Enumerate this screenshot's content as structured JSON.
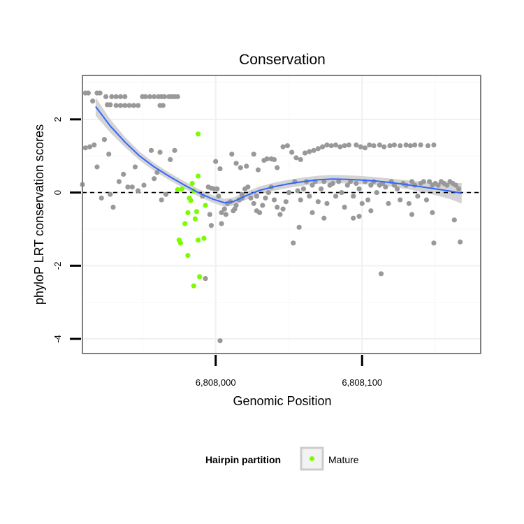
{
  "chart_data": {
    "type": "scatter",
    "title": "Conservation",
    "xlabel": "Genomic Position",
    "ylabel": "phyloP LRT conservation scores",
    "xlim": [
      6807909,
      6808181
    ],
    "ylim": [
      -4.4,
      3.2
    ],
    "x_ticks": [
      {
        "value": 6808000,
        "label": "6,808,000"
      },
      {
        "value": 6808100,
        "label": "6,808,100"
      }
    ],
    "y_ticks": [
      {
        "value": -4,
        "label": "-4"
      },
      {
        "value": -2,
        "label": "-2"
      },
      {
        "value": 0,
        "label": "0"
      },
      {
        "value": 2,
        "label": "2"
      }
    ],
    "grid": true,
    "reference_line": {
      "y": 0,
      "style": "dashed"
    },
    "legend": {
      "title": "Hairpin partition",
      "position": "bottom",
      "entries": [
        {
          "label": "Mature",
          "color": "#7CFC00"
        }
      ]
    },
    "colors": {
      "other": "#999999",
      "mature": "#7CFC00",
      "smooth": "#3366FF",
      "band": "#cccccc",
      "frame": "#7f7f7f"
    },
    "series": [
      {
        "name": "Mature",
        "points": [
          [
            6807974,
            0.08
          ],
          [
            6807977,
            0.1
          ],
          [
            6807979,
            -0.85
          ],
          [
            6807981,
            -0.55
          ],
          [
            6807982,
            -0.15
          ],
          [
            6807983,
            -0.22
          ],
          [
            6807985,
            0.05
          ],
          [
            6807986,
            -0.72
          ],
          [
            6807987,
            -0.52
          ],
          [
            6807988,
            0.45
          ],
          [
            6807975,
            -1.3
          ],
          [
            6807976,
            -1.38
          ],
          [
            6807981,
            -1.72
          ],
          [
            6807985,
            -2.55
          ],
          [
            6807989,
            -2.3
          ],
          [
            6807988,
            -1.3
          ],
          [
            6807992,
            -1.25
          ],
          [
            6807988,
            1.6
          ],
          [
            6807993,
            -0.35
          ],
          [
            6807984,
            0.25
          ]
        ]
      },
      {
        "points": [
          [
            6807911,
            2.72
          ],
          [
            6807913,
            2.72
          ],
          [
            6807919,
            2.72
          ],
          [
            6807921,
            2.72
          ],
          [
            6807926,
            2.4
          ],
          [
            6807928,
            2.4
          ],
          [
            6807925,
            2.62
          ],
          [
            6807929,
            2.62
          ],
          [
            6807932,
            2.62
          ],
          [
            6807935,
            2.62
          ],
          [
            6807938,
            2.62
          ],
          [
            6807932,
            2.38
          ],
          [
            6807935,
            2.38
          ],
          [
            6807938,
            2.38
          ],
          [
            6807941,
            2.38
          ],
          [
            6807944,
            2.38
          ],
          [
            6807947,
            2.38
          ],
          [
            6807950,
            2.62
          ],
          [
            6807952,
            2.62
          ],
          [
            6807955,
            2.62
          ],
          [
            6807958,
            2.62
          ],
          [
            6807961,
            2.62
          ],
          [
            6807963,
            2.62
          ],
          [
            6807965,
            2.62
          ],
          [
            6807968,
            2.62
          ],
          [
            6807970,
            2.62
          ],
          [
            6807972,
            2.62
          ],
          [
            6807974,
            2.62
          ],
          [
            6807962,
            2.38
          ],
          [
            6807964,
            2.38
          ],
          [
            6807911,
            1.22
          ],
          [
            6807914,
            1.25
          ],
          [
            6807917,
            1.3
          ],
          [
            6807924,
            1.45
          ],
          [
            6807927,
            1.05
          ],
          [
            6807919,
            0.7
          ],
          [
            6807922,
            -0.15
          ],
          [
            6807928,
            -0.05
          ],
          [
            6807930,
            -0.4
          ],
          [
            6807934,
            0.3
          ],
          [
            6807937,
            0.5
          ],
          [
            6807940,
            0.15
          ],
          [
            6807943,
            0.15
          ],
          [
            6807945,
            0.7
          ],
          [
            6807947,
            0.05
          ],
          [
            6807951,
            0.2
          ],
          [
            6807956,
            1.15
          ],
          [
            6807958,
            0.38
          ],
          [
            6807960,
            0.55
          ],
          [
            6807962,
            1.1
          ],
          [
            6807963,
            -0.2
          ],
          [
            6807966,
            -0.05
          ],
          [
            6807969,
            0.9
          ],
          [
            6807972,
            1.15
          ],
          [
            6807909,
            0.22
          ],
          [
            6807916,
            2.5
          ],
          [
            6807995,
            0.15
          ],
          [
            6807997,
            0.12
          ],
          [
            6807999,
            0.1
          ],
          [
            6808001,
            0.1
          ],
          [
            6808002,
            -0.1
          ],
          [
            6808004,
            -0.55
          ],
          [
            6808006,
            -0.45
          ],
          [
            6808008,
            -0.3
          ],
          [
            6808010,
            -0.25
          ],
          [
            6808012,
            -0.5
          ],
          [
            6808014,
            -0.35
          ],
          [
            6808016,
            -0.2
          ],
          [
            6808018,
            -0.05
          ],
          [
            6808020,
            0.1
          ],
          [
            6808022,
            0.15
          ],
          [
            6808024,
            -0.15
          ],
          [
            6808026,
            -0.3
          ],
          [
            6808028,
            -0.5
          ],
          [
            6808030,
            -0.55
          ],
          [
            6808032,
            -0.35
          ],
          [
            6808034,
            -0.15
          ],
          [
            6808036,
            0.0
          ],
          [
            6808038,
            0.15
          ],
          [
            6808040,
            -0.2
          ],
          [
            6808042,
            -0.4
          ],
          [
            6808044,
            -0.6
          ],
          [
            6808046,
            -0.45
          ],
          [
            6808048,
            -0.25
          ],
          [
            6808050,
            0.0
          ],
          [
            6808004,
            -0.85
          ],
          [
            6808007,
            -0.6
          ],
          [
            6808013,
            -0.45
          ],
          [
            6808028,
            -0.1
          ],
          [
            6808018,
            -0.15
          ],
          [
            6808000,
            0.85
          ],
          [
            6808003,
            0.65
          ],
          [
            6808011,
            1.05
          ],
          [
            6808014,
            0.8
          ],
          [
            6808017,
            0.68
          ],
          [
            6808021,
            0.72
          ],
          [
            6808026,
            1.05
          ],
          [
            6808029,
            0.62
          ],
          [
            6808033,
            0.88
          ],
          [
            6808035,
            0.92
          ],
          [
            6808038,
            0.92
          ],
          [
            6808040,
            0.9
          ],
          [
            6808042,
            0.68
          ],
          [
            6808046,
            1.25
          ],
          [
            6808049,
            1.28
          ],
          [
            6808052,
            1.1
          ],
          [
            6808055,
            0.95
          ],
          [
            6808058,
            0.9
          ],
          [
            6808061,
            1.08
          ],
          [
            6808064,
            1.12
          ],
          [
            6808067,
            1.15
          ],
          [
            6808070,
            1.2
          ],
          [
            6808073,
            1.25
          ],
          [
            6808076,
            1.3
          ],
          [
            6808079,
            1.28
          ],
          [
            6808082,
            1.3
          ],
          [
            6808085,
            1.25
          ],
          [
            6808088,
            1.28
          ],
          [
            6808091,
            1.3
          ],
          [
            6808096,
            1.3
          ],
          [
            6808099,
            1.25
          ],
          [
            6808102,
            1.22
          ],
          [
            6808105,
            1.3
          ],
          [
            6808108,
            1.28
          ],
          [
            6808112,
            1.3
          ],
          [
            6808115,
            1.25
          ],
          [
            6808119,
            1.28
          ],
          [
            6808122,
            1.3
          ],
          [
            6808126,
            1.28
          ],
          [
            6808130,
            1.3
          ],
          [
            6808133,
            1.28
          ],
          [
            6808136,
            1.3
          ],
          [
            6808140,
            1.3
          ],
          [
            6808145,
            1.28
          ],
          [
            6808149,
            1.3
          ],
          [
            6808054,
            0.3
          ],
          [
            6808056,
            0.05
          ],
          [
            6808058,
            -0.2
          ],
          [
            6808060,
            0.1
          ],
          [
            6808062,
            0.3
          ],
          [
            6808064,
            -0.1
          ],
          [
            6808066,
            0.2
          ],
          [
            6808068,
            0.3
          ],
          [
            6808070,
            -0.25
          ],
          [
            6808072,
            0.1
          ],
          [
            6808074,
            0.3
          ],
          [
            6808076,
            -0.3
          ],
          [
            6808078,
            0.2
          ],
          [
            6808080,
            0.25
          ],
          [
            6808082,
            -0.1
          ],
          [
            6808084,
            0.3
          ],
          [
            6808086,
            0.0
          ],
          [
            6808088,
            -0.4
          ],
          [
            6808090,
            0.2
          ],
          [
            6808092,
            0.3
          ],
          [
            6808094,
            -0.1
          ],
          [
            6808096,
            0.25
          ],
          [
            6808098,
            0.1
          ],
          [
            6808100,
            -0.3
          ],
          [
            6808102,
            0.3
          ],
          [
            6808104,
            -0.2
          ],
          [
            6808106,
            0.2
          ],
          [
            6808108,
            0.3
          ],
          [
            6808110,
            0.0
          ],
          [
            6808112,
            0.2
          ],
          [
            6808114,
            0.25
          ],
          [
            6808116,
            0.15
          ],
          [
            6808118,
            -0.3
          ],
          [
            6808120,
            0.3
          ],
          [
            6808122,
            0.2
          ],
          [
            6808124,
            0.1
          ],
          [
            6808126,
            -0.2
          ],
          [
            6808128,
            0.25
          ],
          [
            6808130,
            0.2
          ],
          [
            6808132,
            -0.3
          ],
          [
            6808134,
            0.3
          ],
          [
            6808136,
            0.2
          ],
          [
            6808138,
            -0.1
          ],
          [
            6808140,
            0.25
          ],
          [
            6808142,
            0.3
          ],
          [
            6808144,
            -0.2
          ],
          [
            6808146,
            0.3
          ],
          [
            6808148,
            0.2
          ],
          [
            6808150,
            0.25
          ],
          [
            6808152,
            0.2
          ],
          [
            6808154,
            0.3
          ],
          [
            6808156,
            0.25
          ],
          [
            6808158,
            0.2
          ],
          [
            6808160,
            0.3
          ],
          [
            6808162,
            0.25
          ],
          [
            6808164,
            0.2
          ],
          [
            6808166,
            0.1
          ],
          [
            6808057,
            -0.95
          ],
          [
            6808066,
            -0.55
          ],
          [
            6808074,
            -0.7
          ],
          [
            6808094,
            -0.7
          ],
          [
            6808098,
            -0.65
          ],
          [
            6808106,
            -0.5
          ],
          [
            6808134,
            -0.6
          ],
          [
            6808148,
            -0.55
          ],
          [
            6808163,
            -0.75
          ],
          [
            6808053,
            -1.38
          ],
          [
            6808113,
            -2.22
          ],
          [
            6808149,
            -1.38
          ],
          [
            6808167,
            -1.35
          ],
          [
            6807993,
            -2.35
          ],
          [
            6808003,
            -4.05
          ],
          [
            6807996,
            -0.6
          ],
          [
            6807997,
            -0.9
          ],
          [
            6807991,
            -0.1
          ]
        ]
      }
    ],
    "smooth_line": {
      "x": [
        6807918,
        6807928,
        6807938,
        6807948,
        6807958,
        6807968,
        6807978,
        6807988,
        6807998,
        6808006,
        6808012,
        6808020,
        6808030,
        6808040,
        6808050,
        6808060,
        6808070,
        6808080,
        6808090,
        6808100,
        6808110,
        6808120,
        6808130,
        6808140,
        6808150,
        6808160,
        6808168
      ],
      "y": [
        2.35,
        1.82,
        1.38,
        1.0,
        0.7,
        0.45,
        0.22,
        0.0,
        -0.18,
        -0.28,
        -0.25,
        -0.1,
        0.06,
        0.16,
        0.24,
        0.3,
        0.35,
        0.37,
        0.36,
        0.34,
        0.31,
        0.27,
        0.22,
        0.16,
        0.1,
        0.04,
        -0.02
      ],
      "se": [
        0.25,
        0.18,
        0.14,
        0.12,
        0.11,
        0.1,
        0.1,
        0.1,
        0.1,
        0.11,
        0.11,
        0.11,
        0.11,
        0.11,
        0.11,
        0.11,
        0.11,
        0.11,
        0.11,
        0.11,
        0.11,
        0.11,
        0.12,
        0.14,
        0.17,
        0.22,
        0.28
      ]
    }
  }
}
